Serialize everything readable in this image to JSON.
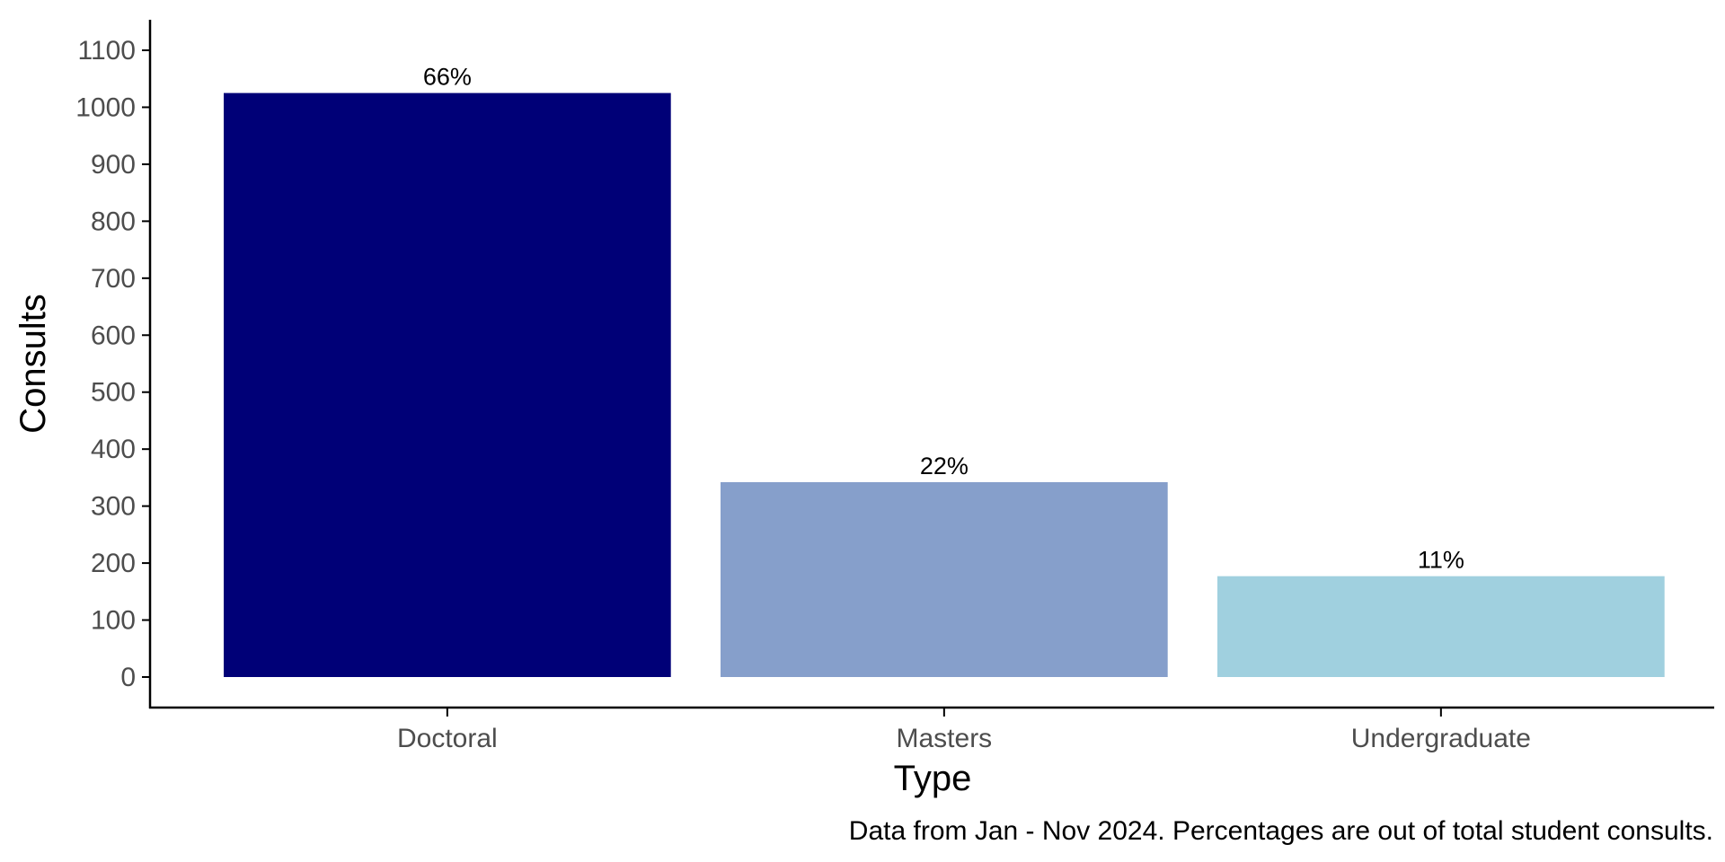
{
  "chart_data": {
    "type": "bar",
    "title": "",
    "xlabel": "Type",
    "ylabel": "Consults",
    "categories": [
      "Doctoral",
      "Masters",
      "Undergraduate"
    ],
    "values": [
      1025,
      342,
      177
    ],
    "data_labels": [
      "66%",
      "22%",
      "11%"
    ],
    "colors": [
      "#000077",
      "#869FCB",
      "#A0D0DF"
    ],
    "ylim": [
      0,
      1100
    ],
    "yticks": [
      0,
      100,
      200,
      300,
      400,
      500,
      600,
      700,
      800,
      900,
      1000,
      1100
    ],
    "grid": false,
    "legend": "none",
    "caption": "Data from Jan - Nov 2024. Percentages are out of total student consults."
  }
}
